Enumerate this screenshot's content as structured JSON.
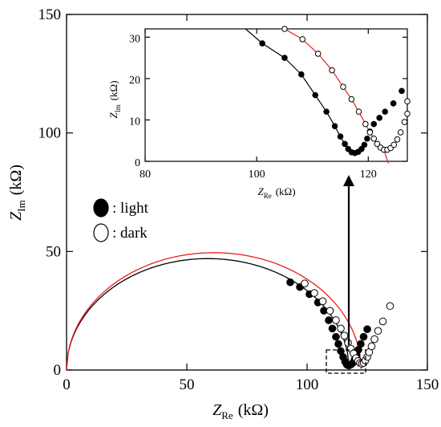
{
  "chart_data": [
    {
      "type": "scatter",
      "role": "main",
      "xlabel": {
        "symbol": "Z",
        "subscript": "Re",
        "unit": "(kΩ)"
      },
      "ylabel": {
        "symbol": "Z",
        "subscript": "Im",
        "unit": "(kΩ)"
      },
      "xlim": [
        0,
        150
      ],
      "ylim": [
        0,
        150
      ],
      "xticks": [
        "0",
        "50",
        "100",
        "150"
      ],
      "yticks": [
        "0",
        "50",
        "100",
        "150"
      ],
      "grid": false,
      "legend": {
        "position": "center-left",
        "entries": [
          ": light",
          ": dark"
        ]
      },
      "series": [
        {
          "name": "light",
          "marker": "filled-circle",
          "color": "#000000",
          "fit_color": "#000000",
          "fit_arc": {
            "x_start": 0,
            "x_end": 117.5,
            "y_peak": 47
          },
          "points": [
            [
              93,
              37
            ],
            [
              97,
              35
            ],
            [
              101,
              32
            ],
            [
              104.5,
              28.5
            ],
            [
              107,
              25
            ],
            [
              109,
              21
            ],
            [
              110.5,
              17.5
            ],
            [
              112,
              14
            ],
            [
              113,
              11
            ],
            [
              114,
              8
            ],
            [
              115,
              5.5
            ],
            [
              115.8,
              3.5
            ],
            [
              116.5,
              2.3
            ],
            [
              117,
              2
            ],
            [
              117.6,
              2
            ],
            [
              118.2,
              2.3
            ],
            [
              119,
              3
            ],
            [
              119.8,
              4.5
            ],
            [
              120.5,
              6.3
            ],
            [
              121.3,
              8.5
            ],
            [
              122.3,
              11
            ],
            [
              123.5,
              14
            ],
            [
              125,
              17.2
            ]
          ]
        },
        {
          "name": "dark",
          "marker": "open-circle",
          "color": "#000000",
          "fit_color": "#e8201e",
          "fit_arc": {
            "x_start": 0,
            "x_end": 122.5,
            "y_peak": 49.5
          },
          "points": [
            [
              99,
              36.5
            ],
            [
              103,
              32.5
            ],
            [
              106.5,
              29
            ],
            [
              109.5,
              25
            ],
            [
              112,
              21
            ],
            [
              114,
              17.5
            ],
            [
              115.5,
              14.5
            ],
            [
              117,
              11.5
            ],
            [
              118.2,
              9
            ],
            [
              119.3,
              7
            ],
            [
              120.3,
              5
            ],
            [
              121.2,
              3.8
            ],
            [
              122,
              3
            ],
            [
              122.8,
              2.7
            ],
            [
              123.5,
              3
            ],
            [
              124.2,
              4
            ],
            [
              125,
              5.5
            ],
            [
              125.8,
              7.5
            ],
            [
              126.8,
              10
            ],
            [
              128,
              13
            ],
            [
              129.5,
              16.5
            ],
            [
              131.5,
              20.5
            ],
            [
              134.5,
              27
            ]
          ]
        }
      ],
      "annotations": [
        "dashed-box-around-minima",
        "arrow-to-inset"
      ]
    },
    {
      "type": "scatter",
      "role": "inset",
      "xlabel": {
        "symbol": "Z",
        "subscript": "Re",
        "unit": "(kΩ)"
      },
      "ylabel": {
        "symbol": "Z",
        "subscript": "Im",
        "unit": "(kΩ)"
      },
      "xlim": [
        80,
        127
      ],
      "ylim": [
        0,
        32
      ],
      "xticks": [
        "80",
        "100",
        "120"
      ],
      "yticks": [
        "0",
        "10",
        "20",
        "30"
      ],
      "grid": false,
      "series": [
        {
          "name": "light",
          "marker": "filled-circle",
          "color": "#000000",
          "fit_color": "#000000",
          "points": [
            [
              101,
              28.5
            ],
            [
              105,
              25
            ],
            [
              108,
              21
            ],
            [
              110.5,
              16
            ],
            [
              112.5,
              12
            ],
            [
              114,
              8.5
            ],
            [
              115,
              6
            ],
            [
              115.8,
              4.2
            ],
            [
              116.4,
              3
            ],
            [
              117,
              2.2
            ],
            [
              117.6,
              2
            ],
            [
              118.2,
              2.3
            ],
            [
              118.8,
              3
            ],
            [
              119.3,
              4
            ],
            [
              119.8,
              5.5
            ],
            [
              120.3,
              7.2
            ],
            [
              121,
              9
            ],
            [
              122,
              10.5
            ],
            [
              123,
              12
            ],
            [
              124.5,
              14
            ],
            [
              126,
              17
            ]
          ]
        },
        {
          "name": "dark",
          "marker": "open-circle",
          "color": "#000000",
          "fit_color": "#e8201e",
          "points": [
            [
              105,
              32
            ],
            [
              108.2,
              29.5
            ],
            [
              111,
              26
            ],
            [
              113.5,
              22
            ],
            [
              115.5,
              18
            ],
            [
              117,
              15
            ],
            [
              118.3,
              12
            ],
            [
              119.5,
              9
            ],
            [
              120.3,
              7
            ],
            [
              121,
              5.5
            ],
            [
              121.6,
              4.2
            ],
            [
              122.2,
              3.3
            ],
            [
              122.8,
              2.8
            ],
            [
              123.4,
              2.8
            ],
            [
              124,
              3.2
            ],
            [
              124.6,
              4
            ],
            [
              125.2,
              5.3
            ],
            [
              125.8,
              7
            ],
            [
              126.5,
              9.5
            ],
            [
              127,
              11.5
            ],
            [
              127,
              14.5
            ]
          ]
        }
      ]
    }
  ]
}
